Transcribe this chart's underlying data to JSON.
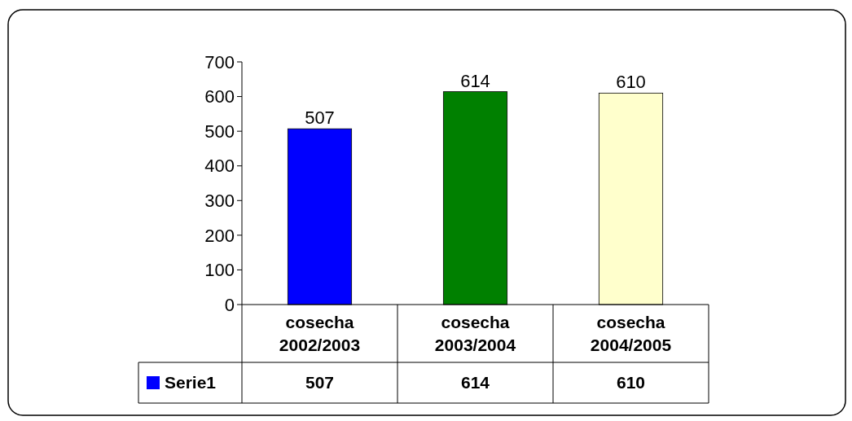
{
  "chart_data": {
    "type": "bar",
    "categories": [
      "cosecha 2002/2003",
      "cosecha 2003/2004",
      "cosecha 2004/2005"
    ],
    "series": [
      {
        "name": "Serie1",
        "color": "#0000ff",
        "colors": [
          "#0000ff",
          "#008000",
          "#ffffcc"
        ],
        "values": [
          507,
          614,
          610
        ]
      }
    ],
    "ylim": [
      0,
      700
    ],
    "yticks": [
      0,
      100,
      200,
      300,
      400,
      500,
      600,
      700
    ],
    "annotations": [
      "507",
      "614",
      "610"
    ],
    "data_labels": true,
    "legend": "bottom",
    "grid": false
  }
}
